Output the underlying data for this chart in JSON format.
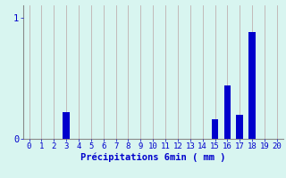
{
  "categories": [
    0,
    1,
    2,
    3,
    4,
    5,
    6,
    7,
    8,
    9,
    10,
    11,
    12,
    13,
    14,
    15,
    16,
    17,
    18,
    19,
    20
  ],
  "values": [
    0,
    0,
    0,
    0.22,
    0,
    0,
    0,
    0,
    0,
    0,
    0,
    0,
    0,
    0,
    0,
    0.16,
    0.44,
    0.2,
    0.88,
    0,
    0
  ],
  "bar_color": "#0000cc",
  "background_color": "#d8f5f0",
  "grid_color": "#c0b0b0",
  "xlabel": "Précipitations 6min ( mm )",
  "yticks": [
    0,
    1
  ],
  "ylim": [
    0,
    1.1
  ],
  "xlim": [
    -0.5,
    20.5
  ],
  "bar_width": 0.55,
  "xlabel_color": "#0000cc",
  "ytick_color": "#0000cc",
  "xtick_color": "#0000cc",
  "axis_color": "#888888",
  "xlabel_fontsize": 7.5,
  "tick_fontsize": 6.5
}
